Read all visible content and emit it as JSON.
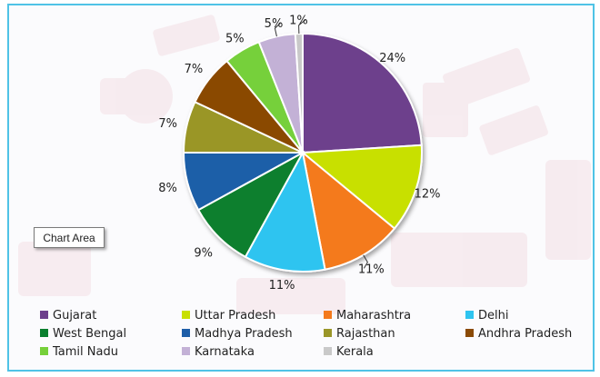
{
  "chart_area_label": "Chart Area",
  "chart_data": {
    "type": "pie",
    "title": "",
    "slices": [
      {
        "label": "Gujarat",
        "value": 24,
        "value_label": "24%",
        "color": "#6d3f8c"
      },
      {
        "label": "Uttar Pradesh",
        "value": 12,
        "value_label": "12%",
        "color": "#c8e000"
      },
      {
        "label": "Maharashtra",
        "value": 11,
        "value_label": "11%",
        "color": "#f47a1c"
      },
      {
        "label": "Delhi",
        "value": 11,
        "value_label": "11%",
        "color": "#2ec4f0"
      },
      {
        "label": "West Bengal",
        "value": 9,
        "value_label": "9%",
        "color": "#0a7f2e"
      },
      {
        "label": "Madhya Pradesh",
        "value": 8,
        "value_label": "8%",
        "color": "#1e5ea8"
      },
      {
        "label": "Rajasthan",
        "value": 7,
        "value_label": "7%",
        "color": "#9a9628"
      },
      {
        "label": "Andhra Pradesh",
        "value": 7,
        "value_label": "7%",
        "color": "#8a4a06"
      },
      {
        "label": "Tamil Nadu",
        "value": 5,
        "value_label": "5%",
        "color": "#76d03a"
      },
      {
        "label": "Karnataka",
        "value": 5,
        "value_label": "5%",
        "color": "#c3b1d6"
      },
      {
        "label": "Kerala",
        "value": 1,
        "value_label": "1%",
        "color": "#c9c9c9"
      }
    ],
    "legend_position": "bottom"
  }
}
